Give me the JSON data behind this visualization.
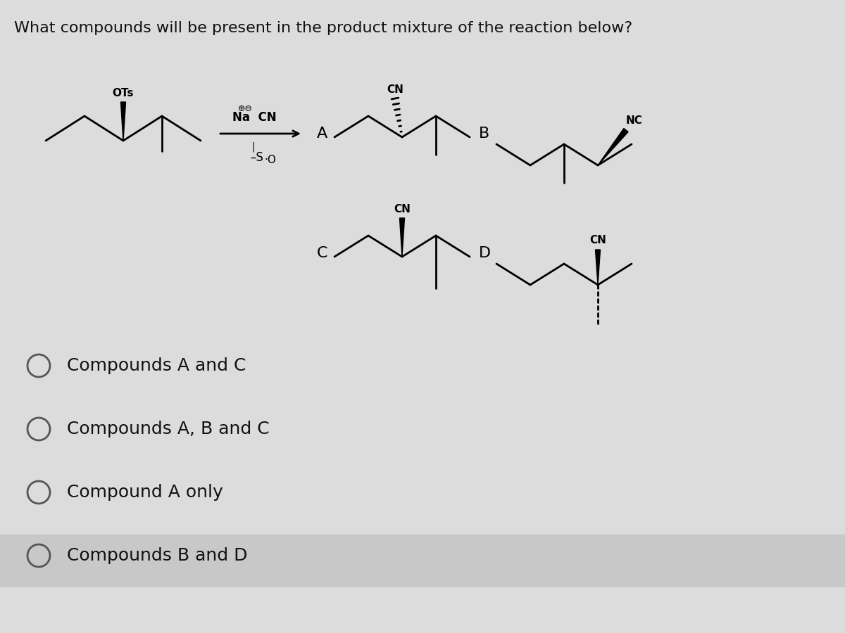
{
  "title": "What compounds will be present in the product mixture of the reaction below?",
  "title_fontsize": 16,
  "background_color": "#dcdcdc",
  "options": [
    "Compounds A and C",
    "Compounds A, B and C",
    "Compound A only",
    "Compounds B and D"
  ],
  "option_fontsize": 18,
  "last_option_bg": "#c8c8c8",
  "text_color": "#111111",
  "fig_width": 12.0,
  "fig_height": 9.0,
  "dpi": 100
}
